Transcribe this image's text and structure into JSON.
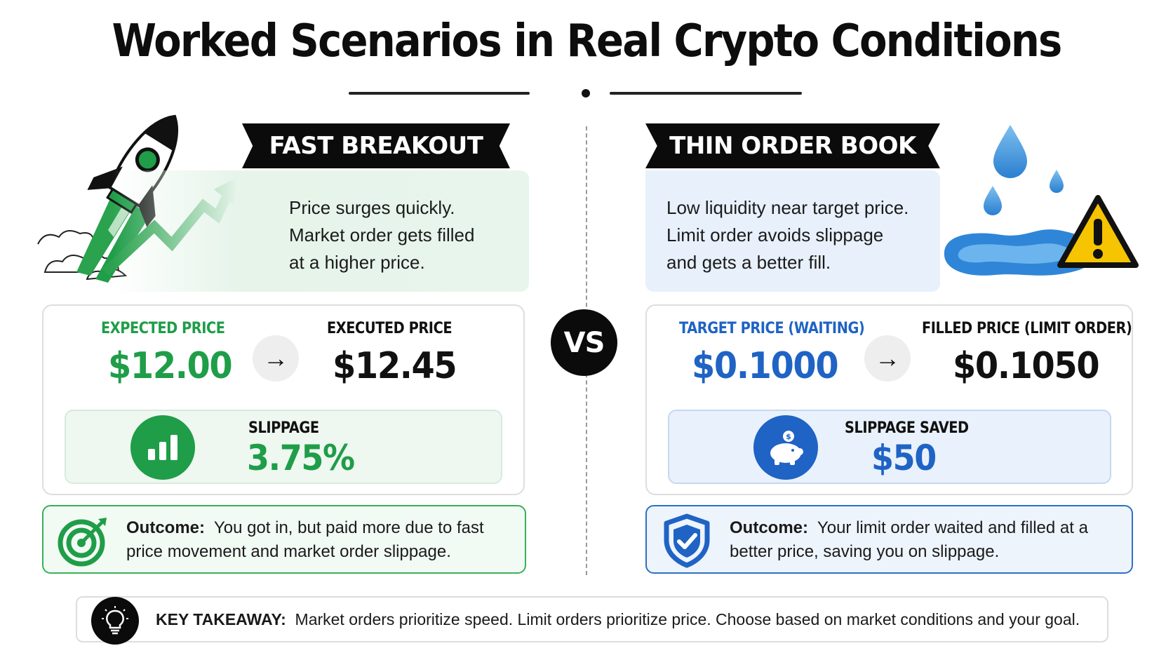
{
  "title": "Worked Scenarios in Real Crypto Conditions",
  "vs_label": "VS",
  "colors": {
    "green": "#1f9d48",
    "blue": "#1f63c4",
    "dark": "#0b0b0b"
  },
  "left": {
    "banner": "FAST BREAKOUT",
    "description": [
      "Price surges quickly.",
      "Market order gets filled",
      "at a higher price."
    ],
    "price_a_label": "EXPECTED PRICE",
    "price_a_value": "$12.00",
    "price_b_label": "EXECUTED PRICE",
    "price_b_value": "$12.45",
    "metric_label": "SLIPPAGE",
    "metric_value": "3.75%",
    "outcome_label": "Outcome:",
    "outcome_line1": "You got in, but paid more due to fast",
    "outcome_line2": "price movement and market order slippage.",
    "icons": [
      "rocket-icon",
      "trend-arrow-icon",
      "bar-chart-icon",
      "target-icon"
    ]
  },
  "right": {
    "banner": "THIN ORDER BOOK",
    "description": [
      "Low liquidity near target price.",
      "Limit order avoids slippage",
      "and gets a better fill."
    ],
    "price_a_label": "TARGET PRICE (WAITING)",
    "price_a_value": "$0.1000",
    "price_b_label": "FILLED PRICE (LIMIT ORDER)",
    "price_b_value": "$0.1050",
    "metric_label": "SLIPPAGE SAVED",
    "metric_value": "$50",
    "outcome_label": "Outcome:",
    "outcome_line1": "Your limit order waited and filled at a",
    "outcome_line2": "better price, saving you on slippage.",
    "icons": [
      "water-drop-icon",
      "warning-icon",
      "piggy-bank-icon",
      "shield-check-icon"
    ]
  },
  "takeaway": {
    "label": "KEY TAKEAWAY:",
    "text": "Market orders prioritize speed. Limit orders prioritize price. Choose based on market conditions and your goal.",
    "icon": "lightbulb-icon"
  }
}
